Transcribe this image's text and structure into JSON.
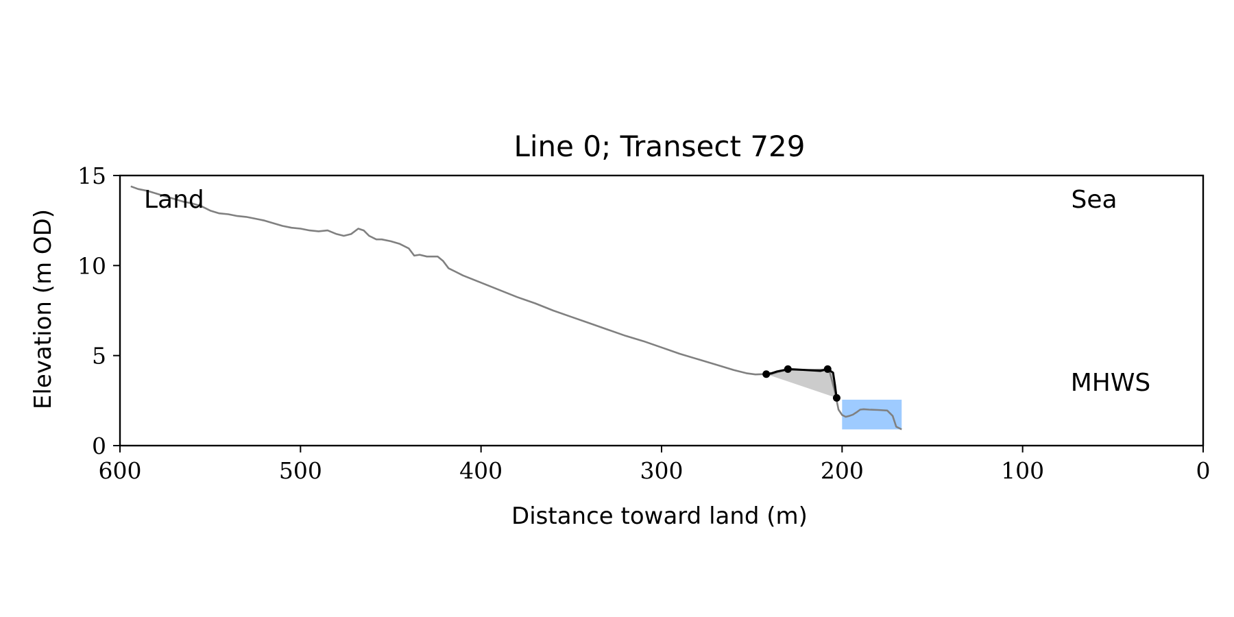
{
  "chart_data": {
    "type": "line",
    "title": "Line 0; Transect 729",
    "xlabel": "Distance toward land (m)",
    "ylabel": "Elevation (m OD)",
    "xlim": [
      600,
      0
    ],
    "ylim": [
      0,
      15
    ],
    "x_ticks": [
      600,
      500,
      400,
      300,
      200,
      100,
      0
    ],
    "y_ticks": [
      0,
      5,
      10,
      15
    ],
    "grid": false,
    "annotations": {
      "land": "Land",
      "sea": "Sea",
      "mhws": "MHWS"
    },
    "mhws": {
      "elevation": 2.55,
      "x_range": [
        200,
        167
      ]
    },
    "colors": {
      "profile": "#808080",
      "feature": "#000000",
      "fill": "#cccccc",
      "mhws_fill": "#9ecbff",
      "mhws_text": "#5f96c8"
    },
    "series": [
      {
        "key": "profile",
        "x": [
          594,
          590,
          585,
          580,
          575,
          570,
          565,
          560,
          555,
          550,
          545,
          540,
          535,
          530,
          525,
          520,
          515,
          510,
          505,
          500,
          495,
          490,
          485,
          480,
          476,
          472,
          468,
          465,
          462,
          458,
          455,
          450,
          445,
          440,
          437,
          434,
          430,
          428,
          424,
          421,
          418,
          414,
          410,
          400,
          390,
          380,
          370,
          360,
          350,
          340,
          330,
          320,
          310,
          300,
          290,
          280,
          270,
          260,
          253,
          248,
          243,
          240,
          235,
          230,
          220,
          210,
          207,
          204,
          202,
          200,
          198,
          196,
          194,
          192,
          190,
          188,
          185,
          180,
          175,
          172,
          170,
          168,
          167
        ],
        "y": [
          14.4,
          14.25,
          14.15,
          14.0,
          13.85,
          13.7,
          13.55,
          13.45,
          13.3,
          13.05,
          12.9,
          12.85,
          12.75,
          12.7,
          12.6,
          12.5,
          12.35,
          12.2,
          12.1,
          12.05,
          11.95,
          11.9,
          11.95,
          11.75,
          11.65,
          11.75,
          12.05,
          11.95,
          11.65,
          11.45,
          11.45,
          11.35,
          11.2,
          10.95,
          10.55,
          10.6,
          10.5,
          10.5,
          10.5,
          10.25,
          9.85,
          9.65,
          9.45,
          9.05,
          8.65,
          8.25,
          7.9,
          7.5,
          7.15,
          6.8,
          6.45,
          6.1,
          5.8,
          5.45,
          5.1,
          4.8,
          4.5,
          4.2,
          4.02,
          3.95,
          3.97,
          3.95,
          4.1,
          4.22,
          4.2,
          4.22,
          4.15,
          3.0,
          2.0,
          1.7,
          1.6,
          1.65,
          1.72,
          1.85,
          2.0,
          2.02,
          2.0,
          1.98,
          1.95,
          1.65,
          1.05,
          0.95,
          0.9
        ]
      },
      {
        "key": "feature",
        "x": [
          242,
          239,
          236,
          232,
          230,
          226,
          220,
          212,
          208,
          205,
          204,
          203
        ],
        "y": [
          3.97,
          4.02,
          4.12,
          4.2,
          4.25,
          4.23,
          4.2,
          4.15,
          4.25,
          4.05,
          3.4,
          2.65
        ]
      }
    ],
    "markers": {
      "x": [
        242,
        230,
        208,
        203
      ],
      "y": [
        3.97,
        4.25,
        4.25,
        2.65
      ]
    }
  }
}
